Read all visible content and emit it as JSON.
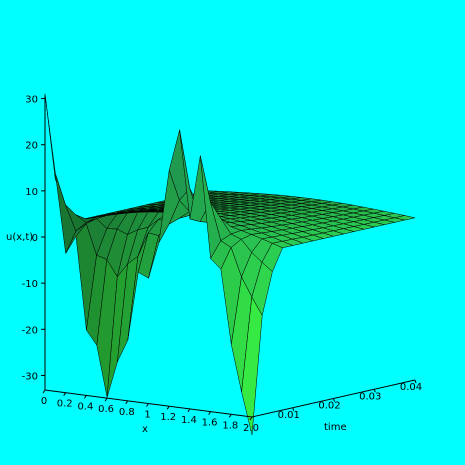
{
  "chart_data": {
    "type": "surface",
    "title": "",
    "xlabel": "x",
    "ylabel": "time",
    "zlabel": "u(x,t)",
    "x_ticks": [
      "0",
      "0.2",
      "0.4",
      "0.6",
      "0.8",
      "1",
      "1.2",
      "1.4",
      "1.6",
      "1.8",
      "2.0"
    ],
    "t_ticks": [
      "0.01",
      "0.02",
      "0.03",
      "0.04"
    ],
    "z_ticks": [
      "-30",
      "-20",
      "-10",
      "0",
      "10",
      "20",
      "30"
    ],
    "xlim": [
      0,
      2
    ],
    "tlim": [
      0,
      0.04
    ],
    "zlim": [
      -33,
      32
    ],
    "grid": false,
    "legend": "none",
    "colors": {
      "background": "#00ffff",
      "surface_low": "#0c6e88",
      "surface_high": "#3cff3c",
      "mesh": "#000000"
    },
    "spikes_at_t0": [
      {
        "x": 0.0,
        "u": 31
      },
      {
        "x": 0.1,
        "u": 14
      },
      {
        "x": 0.2,
        "u": -3
      },
      {
        "x": 0.3,
        "u": 1
      },
      {
        "x": 0.4,
        "u": -19
      },
      {
        "x": 0.5,
        "u": -22
      },
      {
        "x": 0.6,
        "u": -33
      },
      {
        "x": 0.7,
        "u": -25
      },
      {
        "x": 0.8,
        "u": -20
      },
      {
        "x": 0.9,
        "u": -5
      },
      {
        "x": 1.0,
        "u": -6
      },
      {
        "x": 1.1,
        "u": 2
      },
      {
        "x": 1.2,
        "u": 18
      },
      {
        "x": 1.3,
        "u": 27
      },
      {
        "x": 1.4,
        "u": 8
      },
      {
        "x": 1.5,
        "u": 22
      },
      {
        "x": 1.6,
        "u": 0
      },
      {
        "x": 1.7,
        "u": -2
      },
      {
        "x": 1.8,
        "u": -18
      },
      {
        "x": 1.9,
        "u": -28
      },
      {
        "x": 2.0,
        "u": -37
      }
    ]
  }
}
